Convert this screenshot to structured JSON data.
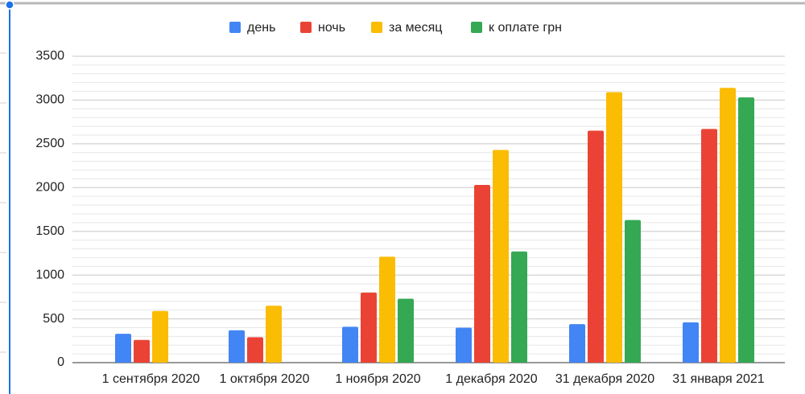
{
  "chart_data": {
    "type": "bar",
    "categories": [
      "1 сентября 2020",
      "1 октября 2020",
      "1 ноября 2020",
      "1 декабря 2020",
      "31 декабря 2020",
      "31 января 2021"
    ],
    "series": [
      {
        "name": "день",
        "color": "#4285f4",
        "values": [
          330,
          370,
          410,
          400,
          440,
          460
        ]
      },
      {
        "name": "ночь",
        "color": "#ea4335",
        "values": [
          260,
          290,
          800,
          2030,
          2650,
          2670
        ]
      },
      {
        "name": "за месяц",
        "color": "#fbbc04",
        "values": [
          590,
          650,
          1210,
          2430,
          3090,
          3140
        ]
      },
      {
        "name": "к оплате грн",
        "color": "#34a853",
        "values": [
          null,
          null,
          730,
          1270,
          1630,
          3030
        ]
      }
    ],
    "ylim": [
      0,
      3500
    ],
    "yticks": [
      0,
      500,
      1000,
      1500,
      2000,
      2500,
      3000,
      3500
    ],
    "grid": true,
    "legend": "top"
  }
}
